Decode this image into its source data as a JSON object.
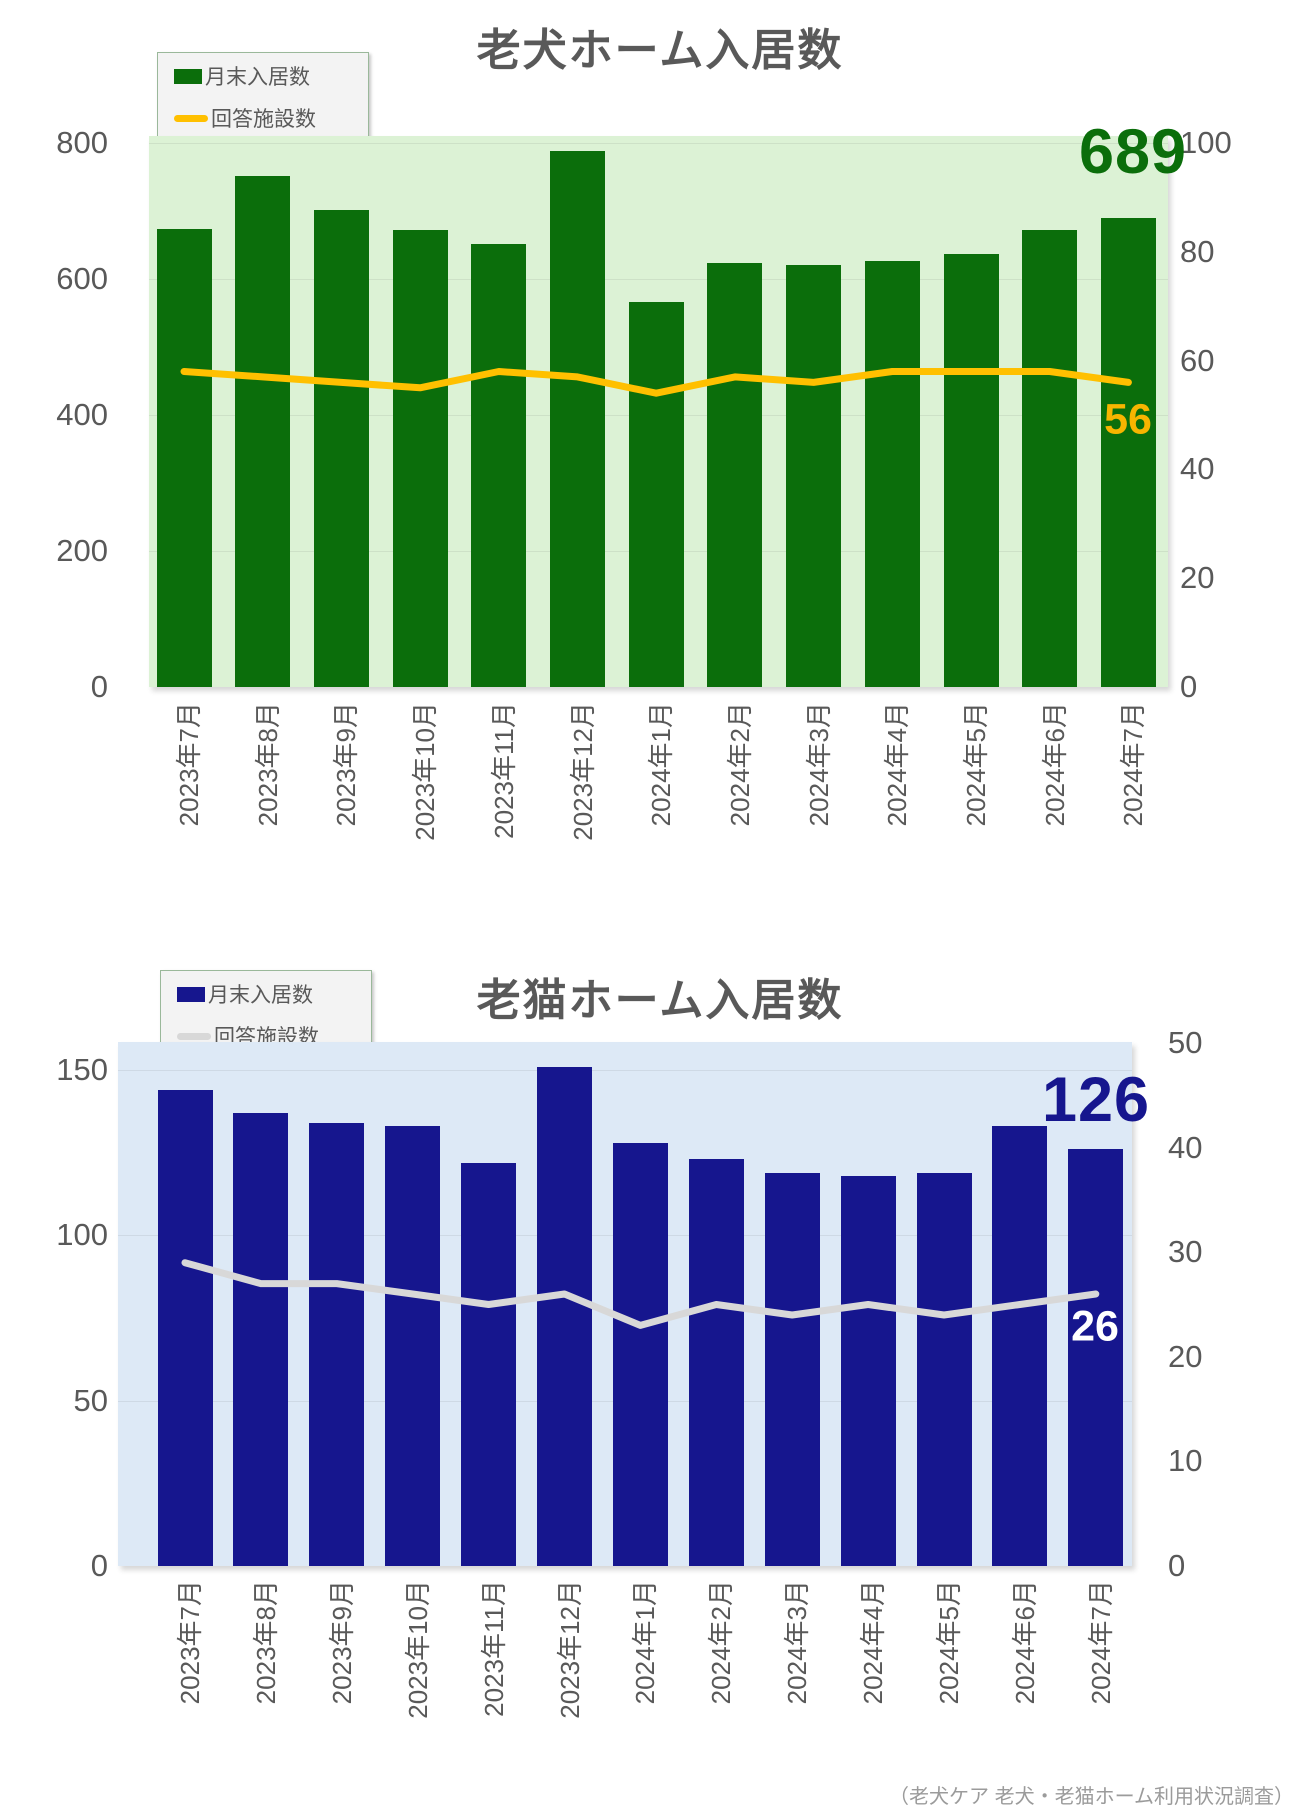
{
  "footer": "（老犬ケア 老犬・老猫ホーム利用状況調査）",
  "chart_data": [
    {
      "type": "bar+line",
      "title": "老犬ホーム入居数",
      "categories": [
        "2023年7月",
        "2023年8月",
        "2023年9月",
        "2023年10月",
        "2023年11月",
        "2023年12月",
        "2024年1月",
        "2024年2月",
        "2024年3月",
        "2024年4月",
        "2024年5月",
        "2024年6月",
        "2024年7月"
      ],
      "series": [
        {
          "name": "月末入居数",
          "type": "bar",
          "axis": "left",
          "values": [
            673,
            752,
            702,
            672,
            652,
            788,
            566,
            623,
            620,
            627,
            637,
            672,
            689
          ]
        },
        {
          "name": "回答施設数",
          "type": "line",
          "axis": "right",
          "values": [
            58,
            57,
            56,
            55,
            58,
            57,
            54,
            57,
            56,
            58,
            58,
            58,
            56
          ]
        }
      ],
      "left_axis": {
        "ticks": [
          0,
          200,
          400,
          600,
          800
        ],
        "ylim": [
          0,
          800
        ]
      },
      "right_axis": {
        "ticks": [
          0,
          20,
          40,
          60,
          80,
          100
        ],
        "ylim": [
          0,
          100
        ]
      },
      "legend": [
        {
          "label": "月末入居数",
          "color": "#0b6e0b"
        },
        {
          "label": "回答施設数",
          "color": "#ffc000"
        }
      ],
      "annotations": {
        "bar_value": "689",
        "line_value": "56"
      },
      "colors": {
        "bar": "#0b6e0b",
        "line": "#ffc000",
        "plot_bg": "#dcf2d5",
        "bar_label": "#0b6e0b",
        "line_label": "#f7b500"
      },
      "grid": true,
      "legend_position": "top-left"
    },
    {
      "type": "bar+line",
      "title": "老猫ホーム入居数",
      "categories": [
        "2023年7月",
        "2023年8月",
        "2023年9月",
        "2023年10月",
        "2023年11月",
        "2023年12月",
        "2024年1月",
        "2024年2月",
        "2024年3月",
        "2024年4月",
        "2024年5月",
        "2024年6月",
        "2024年7月"
      ],
      "series": [
        {
          "name": "月末入居数",
          "type": "bar",
          "axis": "left",
          "values": [
            144,
            137,
            134,
            133,
            122,
            151,
            128,
            123,
            119,
            118,
            119,
            133,
            126
          ]
        },
        {
          "name": "回答施設数",
          "type": "line",
          "axis": "right",
          "values": [
            29,
            27,
            27,
            26,
            25,
            26,
            23,
            25,
            24,
            25,
            24,
            25,
            26
          ]
        }
      ],
      "left_axis": {
        "ticks": [
          0,
          50,
          100,
          150
        ],
        "ylim": [
          0,
          150
        ]
      },
      "right_axis": {
        "ticks": [
          0,
          10,
          20,
          30,
          40,
          50
        ],
        "ylim": [
          0,
          50
        ]
      },
      "legend": [
        {
          "label": "月末入居数",
          "color": "#16168e"
        },
        {
          "label": "回答施設数",
          "color": "#d8d8d8"
        }
      ],
      "annotations": {
        "bar_value": "126",
        "line_value": "26"
      },
      "colors": {
        "bar": "#16168e",
        "line": "#d8d8d8",
        "plot_bg": "#dde9f6",
        "bar_label": "#16168e",
        "line_label": "#ffffff"
      },
      "grid": true,
      "legend_position": "top-left"
    }
  ]
}
